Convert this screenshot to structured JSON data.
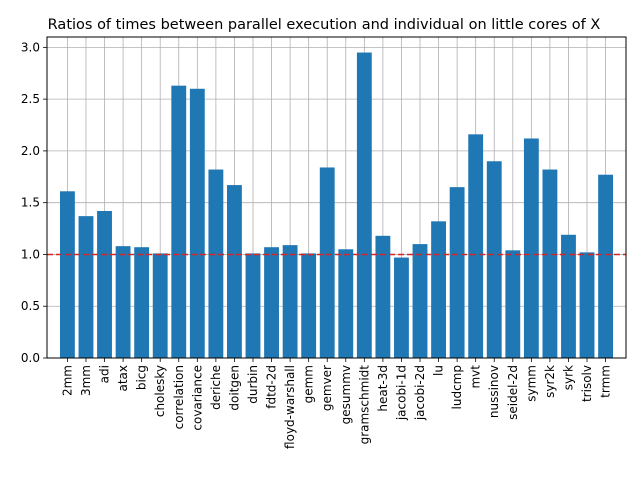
{
  "chart_data": {
    "type": "bar",
    "title": "Ratios of times between parallel execution and individual on little cores of X",
    "xlabel": "",
    "ylabel": "",
    "categories": [
      "2mm",
      "3mm",
      "adi",
      "atax",
      "bicg",
      "cholesky",
      "correlation",
      "covariance",
      "deriche",
      "doitgen",
      "durbin",
      "fdtd-2d",
      "floyd-warshall",
      "gemm",
      "gemver",
      "gesummv",
      "gramschmidt",
      "heat-3d",
      "jacobi-1d",
      "jacobi-2d",
      "lu",
      "ludcmp",
      "mvt",
      "nussinov",
      "seidel-2d",
      "symm",
      "syr2k",
      "syrk",
      "trisolv",
      "trmm"
    ],
    "values": [
      1.61,
      1.37,
      1.42,
      1.08,
      1.07,
      1.01,
      2.63,
      2.6,
      1.82,
      1.67,
      1.01,
      1.07,
      1.09,
      1.01,
      1.84,
      1.05,
      2.95,
      1.18,
      0.97,
      1.1,
      1.32,
      1.65,
      2.16,
      1.9,
      1.04,
      2.12,
      1.82,
      1.19,
      1.02,
      1.77
    ],
    "ylim": [
      0,
      3.1
    ],
    "yticks": [
      "0.0",
      "0.5",
      "1.0",
      "1.5",
      "2.0",
      "2.5",
      "3.0"
    ],
    "reference_line": {
      "y": 1.0,
      "color": "#d62728",
      "style": "dashed"
    },
    "bar_color": "#1f77b4",
    "grid": true
  }
}
